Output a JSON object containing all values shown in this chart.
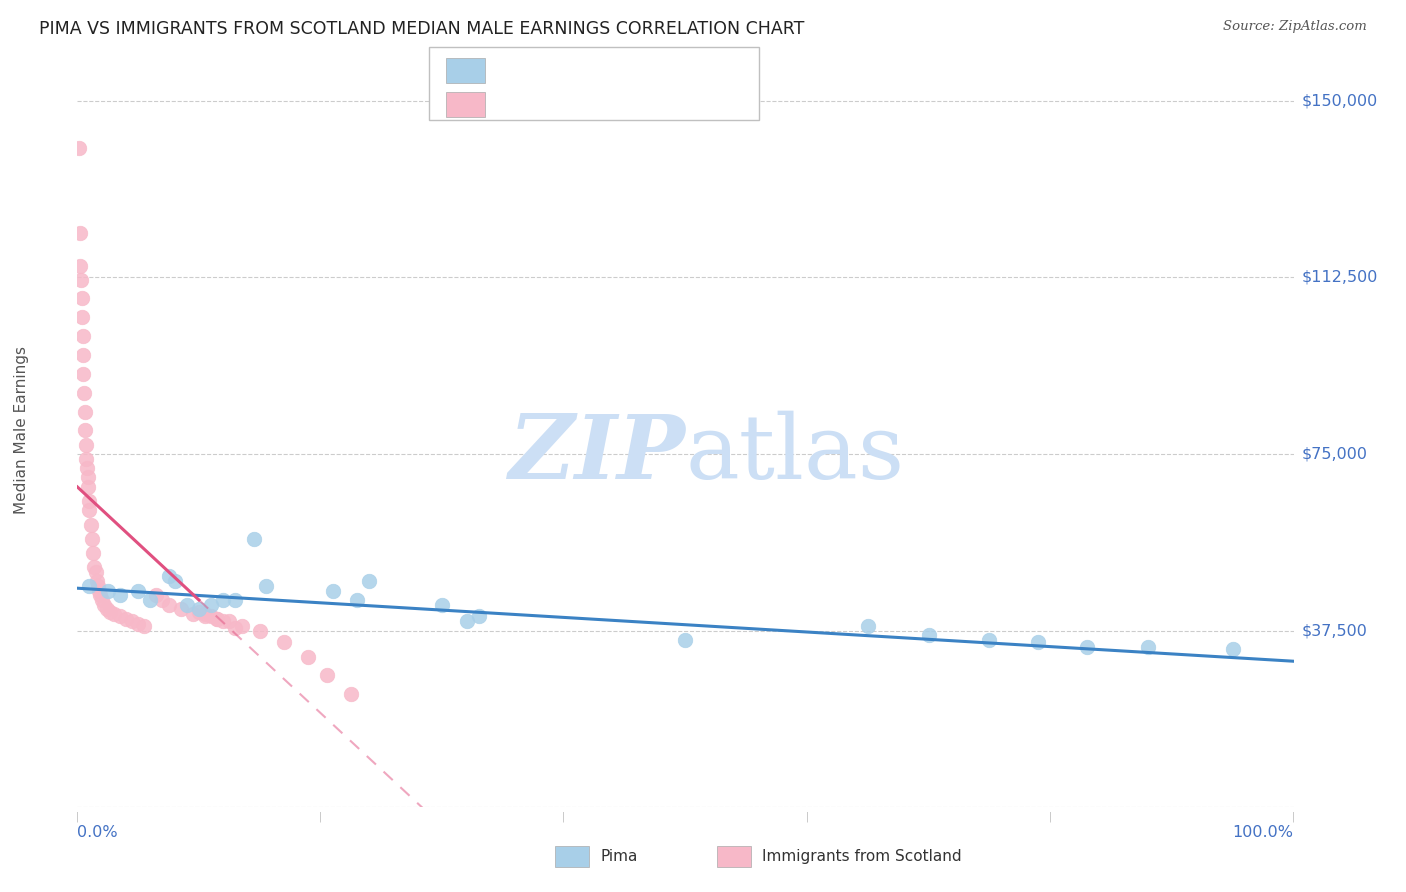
{
  "title": "PIMA VS IMMIGRANTS FROM SCOTLAND MEDIAN MALE EARNINGS CORRELATION CHART",
  "source": "Source: ZipAtlas.com",
  "ylabel": "Median Male Earnings",
  "yticks": [
    0,
    37500,
    75000,
    112500,
    150000
  ],
  "ytick_labels": [
    "",
    "$37,500",
    "$75,000",
    "$112,500",
    "$150,000"
  ],
  "xmin": 0.0,
  "xmax": 100.0,
  "ymin": 0,
  "ymax": 160000,
  "blue_color": "#a8cfe8",
  "pink_color": "#f7b8c8",
  "blue_line_color": "#3b82c4",
  "pink_line_color": "#e05080",
  "pink_line_dash_color": "#e8a0b8",
  "watermark_color": "#ccdff5",
  "blue_points_x": [
    1.0,
    2.5,
    3.5,
    5.0,
    6.0,
    7.5,
    8.0,
    9.0,
    10.0,
    11.0,
    12.0,
    13.0,
    14.5,
    15.5,
    21.0,
    23.0,
    24.0,
    30.0,
    32.0,
    33.0,
    50.0,
    65.0,
    70.0,
    75.0,
    79.0,
    83.0,
    88.0,
    95.0
  ],
  "blue_points_y": [
    47000,
    46000,
    45000,
    46000,
    44000,
    49000,
    48000,
    43000,
    42000,
    43000,
    44000,
    44000,
    57000,
    47000,
    46000,
    44000,
    48000,
    43000,
    39500,
    40500,
    35500,
    38500,
    36500,
    35500,
    35000,
    34000,
    34000,
    33500
  ],
  "pink_points_x": [
    0.15,
    0.2,
    0.25,
    0.3,
    0.35,
    0.4,
    0.45,
    0.5,
    0.5,
    0.55,
    0.6,
    0.65,
    0.7,
    0.75,
    0.8,
    0.85,
    0.9,
    0.95,
    1.0,
    1.1,
    1.2,
    1.3,
    1.4,
    1.5,
    1.6,
    1.7,
    1.8,
    1.9,
    2.0,
    2.2,
    2.4,
    2.7,
    3.0,
    3.5,
    4.0,
    4.5,
    5.0,
    5.5,
    6.5,
    7.0,
    7.5,
    8.5,
    9.5,
    10.5,
    11.5,
    12.5,
    13.5,
    15.0,
    17.0,
    19.0,
    20.5,
    22.5,
    10.0,
    10.5,
    11.0,
    11.5,
    12.0,
    13.0
  ],
  "pink_points_y": [
    140000,
    122000,
    115000,
    112000,
    108000,
    104000,
    100000,
    96000,
    92000,
    88000,
    84000,
    80000,
    77000,
    74000,
    72000,
    70000,
    68000,
    65000,
    63000,
    60000,
    57000,
    54000,
    51000,
    50000,
    48000,
    47000,
    46000,
    45000,
    44000,
    43000,
    42000,
    41500,
    41000,
    40500,
    40000,
    39500,
    39000,
    38500,
    45000,
    44000,
    43000,
    42000,
    41000,
    40500,
    40000,
    39500,
    38500,
    37500,
    35000,
    32000,
    28000,
    24000,
    41500,
    41000,
    40500,
    40000,
    39500,
    38000
  ],
  "blue_line_x0": 0,
  "blue_line_x1": 100,
  "blue_line_y0": 46500,
  "blue_line_y1": 31000,
  "pink_line_solid_x0": 0,
  "pink_line_solid_x1": 10,
  "pink_line_y0": 68000,
  "pink_line_y1": 44000,
  "pink_line_dash_x0": 10,
  "pink_line_dash_x1": 35
}
